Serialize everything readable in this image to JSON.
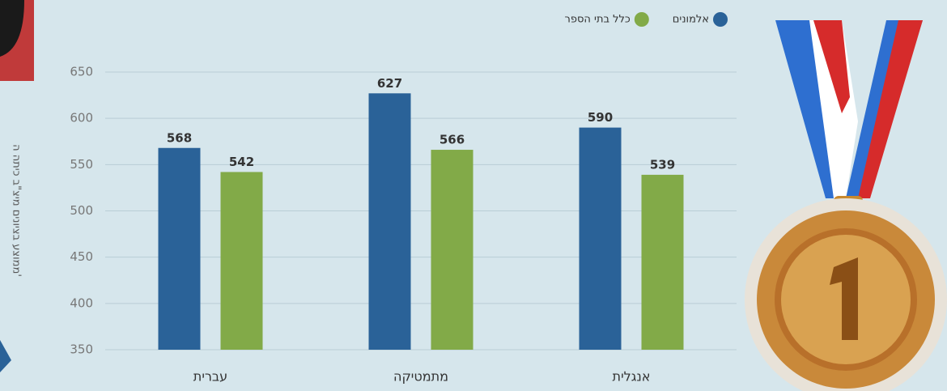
{
  "chart_data": {
    "type": "bar",
    "y_label": "ממוצע בציונים מיצ\"ב כיתה ה'",
    "categories": [
      "עברית",
      "מתמטיקה",
      "אנגלית"
    ],
    "series": [
      {
        "name": "אלמונים",
        "color": "#2a6298",
        "values": [
          568,
          627,
          590
        ]
      },
      {
        "name": "כלל בתי הספר",
        "color": "#82aa48",
        "values": [
          542,
          566,
          539
        ]
      }
    ],
    "ylim": [
      350,
      650
    ],
    "yticks": [
      350,
      400,
      450,
      500,
      550,
      600,
      650
    ],
    "grid": true
  }
}
